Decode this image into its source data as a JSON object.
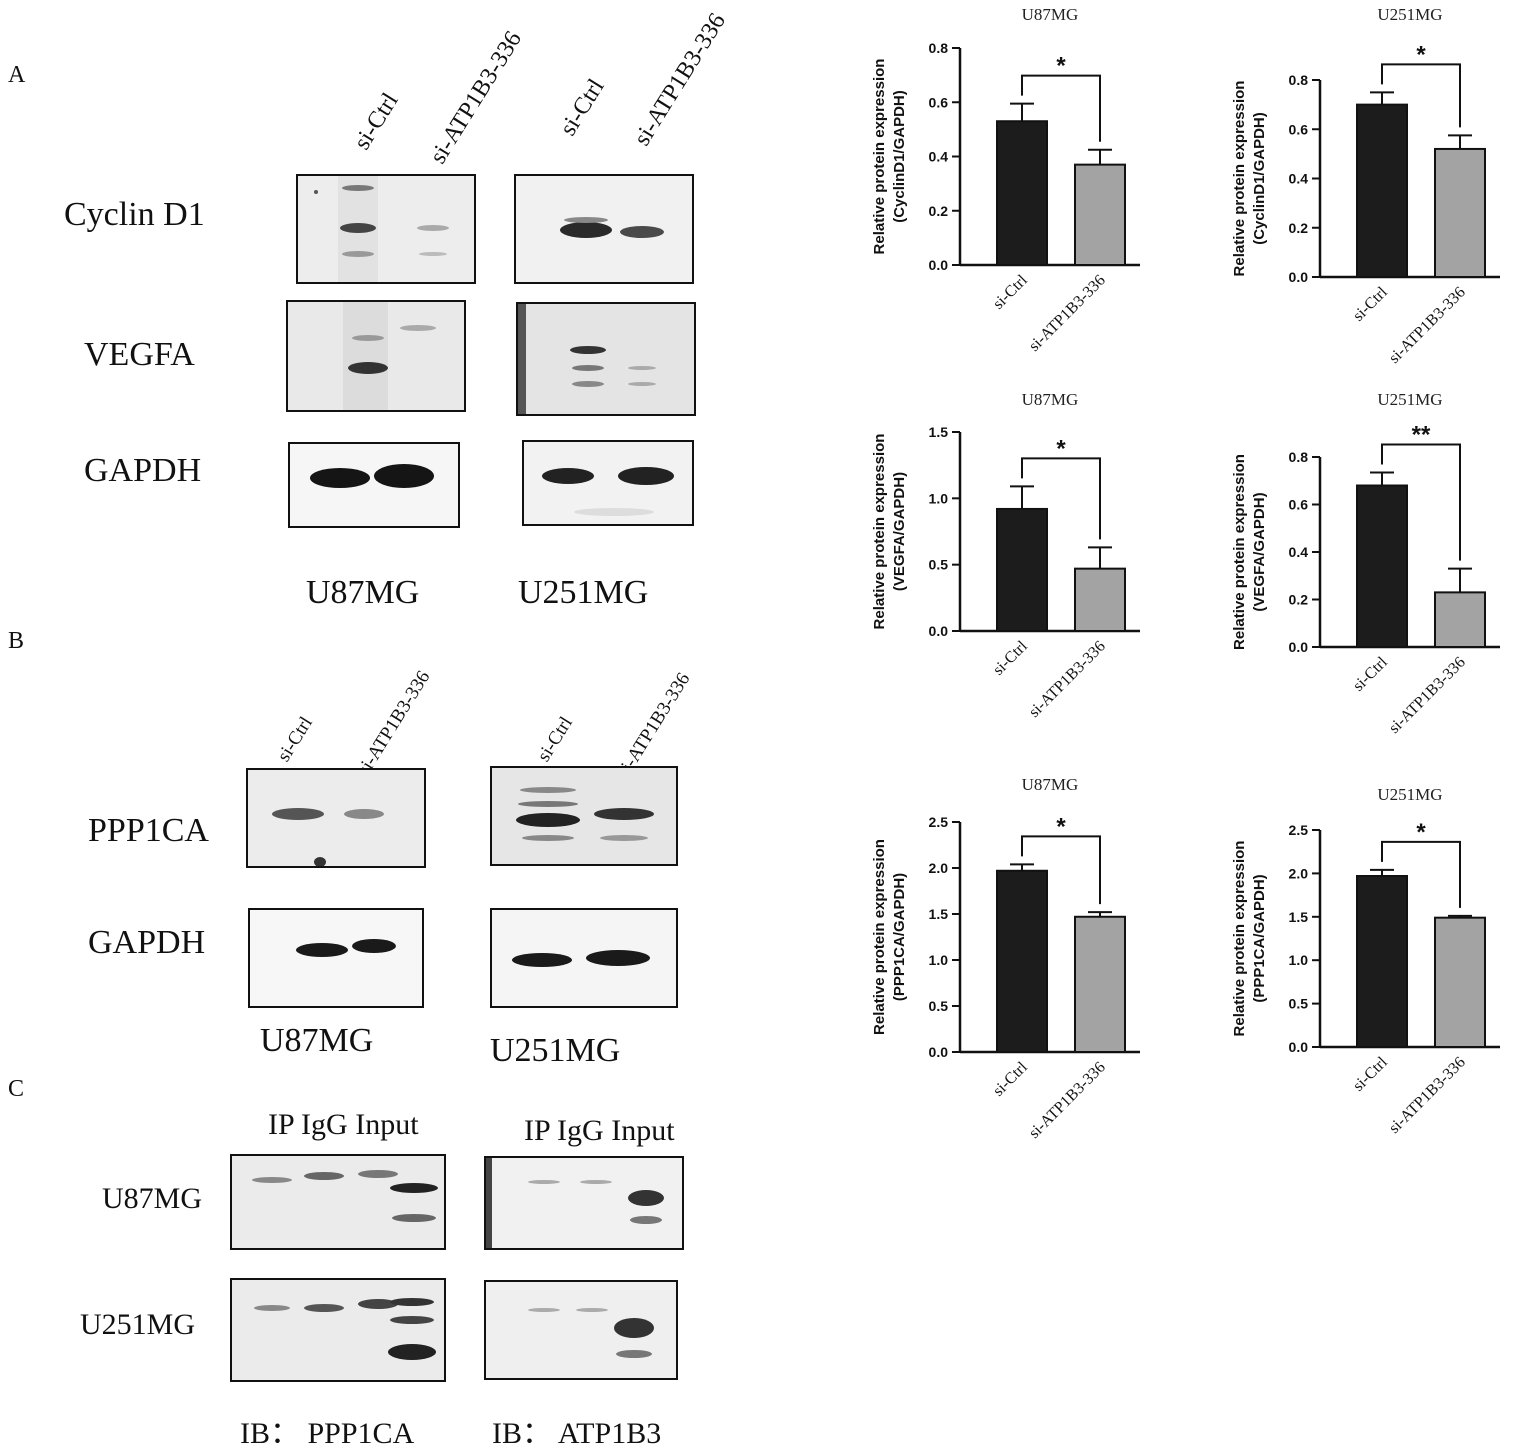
{
  "panels": {
    "A": "A",
    "B": "B",
    "C": "C"
  },
  "lanes": {
    "ctrl": "si-Ctrl",
    "kd": "si-ATP1B3-336"
  },
  "panel_a": {
    "rows": [
      "Cyclin D1",
      "VEGFA",
      "GAPDH"
    ],
    "cells": [
      "U87MG",
      "U251MG"
    ]
  },
  "panel_b": {
    "rows": [
      "PPP1CA",
      "GAPDH"
    ],
    "cells": [
      "U87MG",
      "U251MG"
    ]
  },
  "panel_c": {
    "header": "IP IgG Input",
    "rows": [
      "U87MG",
      "U251MG"
    ],
    "ib": [
      "IB： PPP1CA",
      "IB： ATP1B3"
    ]
  },
  "chart_data": [
    {
      "type": "bar",
      "title": "U87MG",
      "ylabel": [
        "Relative protein expression",
        "(CyclinD1/GAPDH)"
      ],
      "categories": [
        "si-Ctrl",
        "si-ATP1B3-336"
      ],
      "values": [
        0.53,
        0.37
      ],
      "errors": [
        0.065,
        0.055
      ],
      "ylim": [
        0,
        0.8
      ],
      "yticks": [
        "0.0",
        "0.2",
        "0.4",
        "0.6",
        "0.8"
      ],
      "significance": "*"
    },
    {
      "type": "bar",
      "title": "U251MG",
      "ylabel": [
        "Relative protein expression",
        "(CyclinD1/GAPDH)"
      ],
      "categories": [
        "si-Ctrl",
        "si-ATP1B3-336"
      ],
      "values": [
        0.7,
        0.52
      ],
      "errors": [
        0.05,
        0.055
      ],
      "ylim": [
        0,
        0.8
      ],
      "yticks": [
        "0.0",
        "0.2",
        "0.4",
        "0.6",
        "0.8"
      ],
      "significance": "*"
    },
    {
      "type": "bar",
      "title": "U87MG",
      "ylabel": [
        "Relative protein expression",
        "(VEGFA/GAPDH)"
      ],
      "categories": [
        "si-Ctrl",
        "si-ATP1B3-336"
      ],
      "values": [
        0.92,
        0.47
      ],
      "errors": [
        0.17,
        0.16
      ],
      "ylim": [
        0,
        1.5
      ],
      "yticks": [
        "0.0",
        "0.5",
        "1.0",
        "1.5"
      ],
      "significance": "*"
    },
    {
      "type": "bar",
      "title": "U251MG",
      "ylabel": [
        "Relative protein expression",
        "(VEGFA/GAPDH)"
      ],
      "categories": [
        "si-Ctrl",
        "si-ATP1B3-336"
      ],
      "values": [
        0.68,
        0.23
      ],
      "errors": [
        0.055,
        0.1
      ],
      "ylim": [
        0,
        0.8
      ],
      "yticks": [
        "0.0",
        "0.2",
        "0.4",
        "0.6",
        "0.8"
      ],
      "significance": "**"
    },
    {
      "type": "bar",
      "title": "U87MG",
      "ylabel": [
        "Relative protein expression",
        "(PPP1CA/GAPDH)"
      ],
      "categories": [
        "si-Ctrl",
        "si-ATP1B3-336"
      ],
      "values": [
        1.97,
        1.47
      ],
      "errors": [
        0.07,
        0.05
      ],
      "ylim": [
        0,
        2.5
      ],
      "yticks": [
        "0.0",
        "0.5",
        "1.0",
        "1.5",
        "2.0",
        "2.5"
      ],
      "significance": "*"
    },
    {
      "type": "bar",
      "title": "U251MG",
      "ylabel": [
        "Relative protein expression",
        "(PPP1CA/GAPDH)"
      ],
      "categories": [
        "si-Ctrl",
        "si-ATP1B3-336"
      ],
      "values": [
        1.97,
        1.49
      ],
      "errors": [
        0.07,
        0.02
      ],
      "ylim": [
        0,
        2.5
      ],
      "yticks": [
        "0.0",
        "0.5",
        "1.0",
        "1.5",
        "2.0",
        "2.5"
      ],
      "significance": "*"
    }
  ],
  "colors": {
    "ctrl_bar": "#1c1c1c",
    "kd_bar": "#a3a3a3"
  }
}
